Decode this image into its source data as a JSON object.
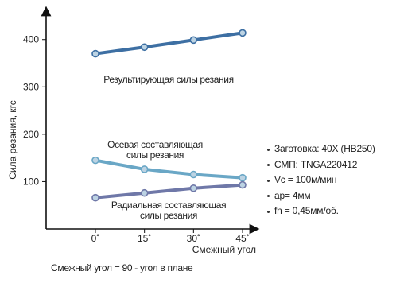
{
  "chart_data": {
    "type": "line",
    "xlabel": "Смежный угол",
    "ylabel": "Сила резания, кгс",
    "x": [
      0,
      15,
      30,
      45
    ],
    "xticklabels": [
      "0˚",
      "15˚",
      "30˚",
      "45˚"
    ],
    "ylim": [
      0,
      460
    ],
    "yticks": [
      100,
      200,
      300,
      400
    ],
    "grid": false,
    "series": [
      {
        "name": "Результирующая силы резания",
        "values": [
          370,
          384,
          399,
          414
        ],
        "color": "#3d6fa3",
        "label_lines": [
          "Результирующая силы резания"
        ]
      },
      {
        "name": "Осевая составляющая силы резания",
        "values": [
          145,
          126,
          115,
          108
        ],
        "color": "#6aa7c6",
        "label_lines": [
          "Осевая составляющая",
          "силы резания"
        ]
      },
      {
        "name": "Радиальная составляющая силы резания",
        "values": [
          66,
          76,
          86,
          93
        ],
        "color": "#6f78a8",
        "label_lines": [
          "Радиальная составляющая",
          "силы резания"
        ]
      }
    ]
  },
  "legend_items": [
    "Заготовка: 40X (HB250)",
    "СМП: TNGA220412",
    "Vc = 100м/мин",
    "ap= 4мм",
    "fn = 0,45мм/об."
  ],
  "footnote": "Смежный угол = 90 - угол в плане"
}
